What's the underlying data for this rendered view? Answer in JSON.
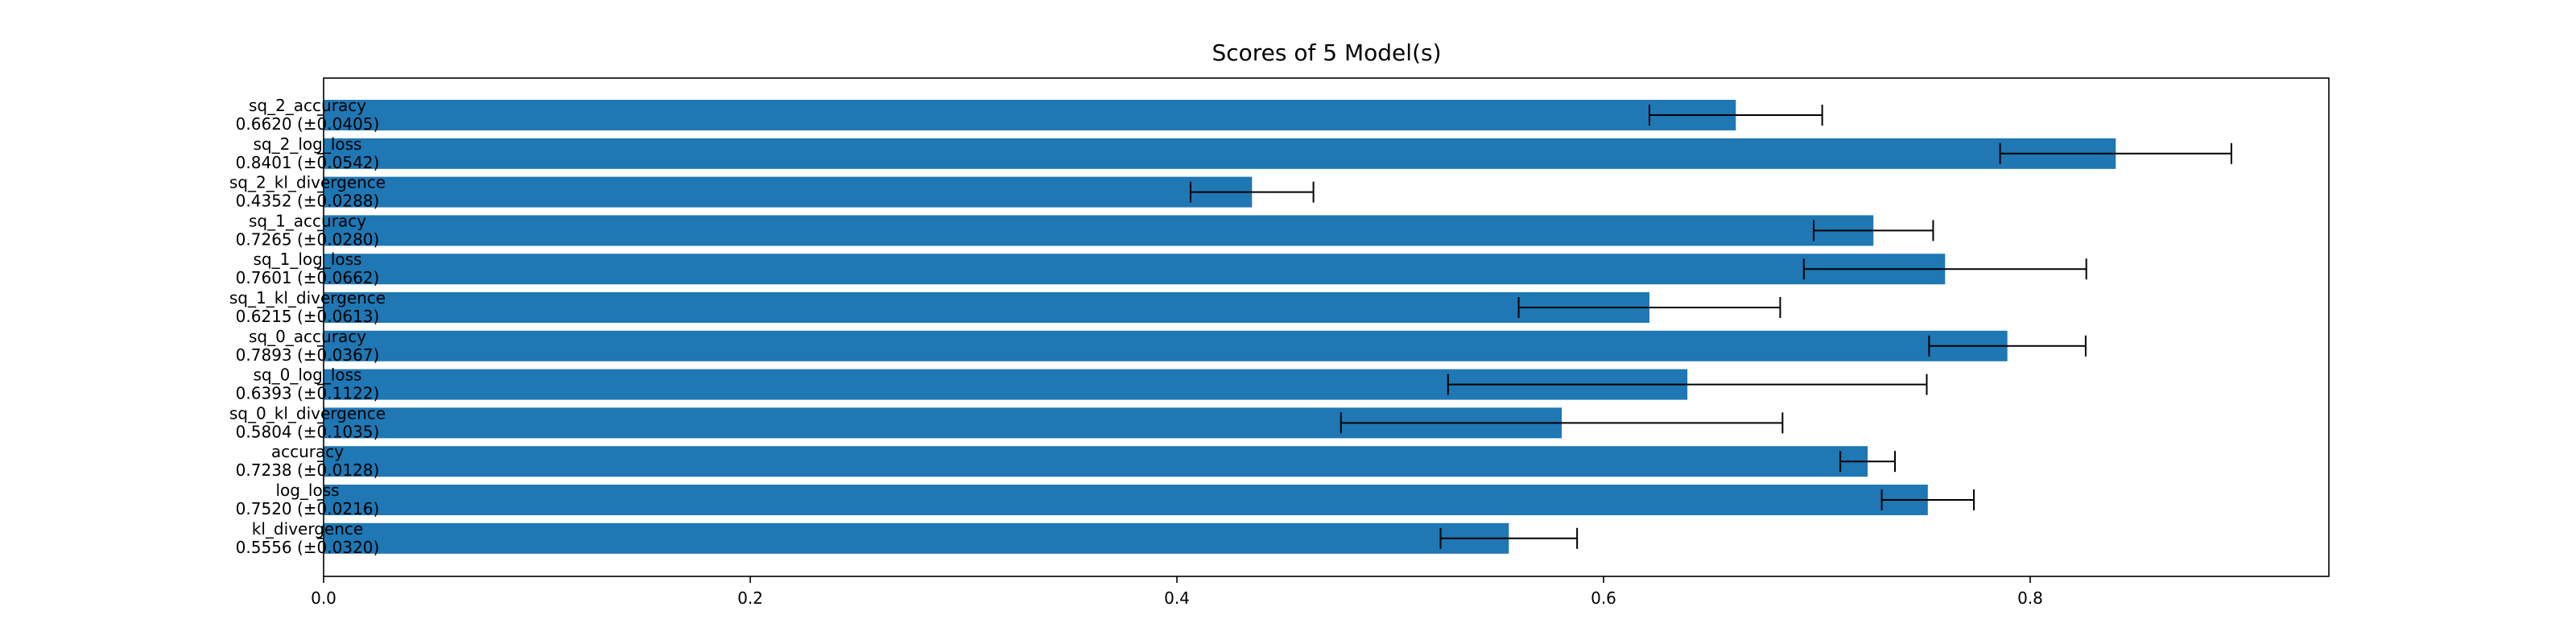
{
  "chart_data": {
    "type": "bar",
    "orientation": "horizontal",
    "title": "Scores of 5 Model(s)",
    "xlabel": "",
    "ylabel": "",
    "xlim": [
      0.0,
      0.94
    ],
    "xticks": [
      "0.0",
      "0.2",
      "0.4",
      "0.6",
      "0.8"
    ],
    "grid": false,
    "bar_color": "#1f77b4",
    "error_bar_color": "#000000",
    "categories": [
      {
        "name": "sq_2_accuracy",
        "label": "0.6620 (±0.0405)",
        "value": 0.662,
        "error": 0.0405
      },
      {
        "name": "sq_2_log_loss",
        "label": "0.8401 (±0.0542)",
        "value": 0.8401,
        "error": 0.0542
      },
      {
        "name": "sq_2_kl_divergence",
        "label": "0.4352 (±0.0288)",
        "value": 0.4352,
        "error": 0.0288
      },
      {
        "name": "sq_1_accuracy",
        "label": "0.7265 (±0.0280)",
        "value": 0.7265,
        "error": 0.028
      },
      {
        "name": "sq_1_log_loss",
        "label": "0.7601 (±0.0662)",
        "value": 0.7601,
        "error": 0.0662
      },
      {
        "name": "sq_1_kl_divergence",
        "label": "0.6215 (±0.0613)",
        "value": 0.6215,
        "error": 0.0613
      },
      {
        "name": "sq_0_accuracy",
        "label": "0.7893 (±0.0367)",
        "value": 0.7893,
        "error": 0.0367
      },
      {
        "name": "sq_0_log_loss",
        "label": "0.6393 (±0.1122)",
        "value": 0.6393,
        "error": 0.1122
      },
      {
        "name": "sq_0_kl_divergence",
        "label": "0.5804 (±0.1035)",
        "value": 0.5804,
        "error": 0.1035
      },
      {
        "name": "accuracy",
        "label": "0.7238 (±0.0128)",
        "value": 0.7238,
        "error": 0.0128
      },
      {
        "name": "log_loss",
        "label": "0.7520 (±0.0216)",
        "value": 0.752,
        "error": 0.0216
      },
      {
        "name": "kl_divergence",
        "label": "0.5556 (±0.0320)",
        "value": 0.5556,
        "error": 0.032
      }
    ]
  }
}
